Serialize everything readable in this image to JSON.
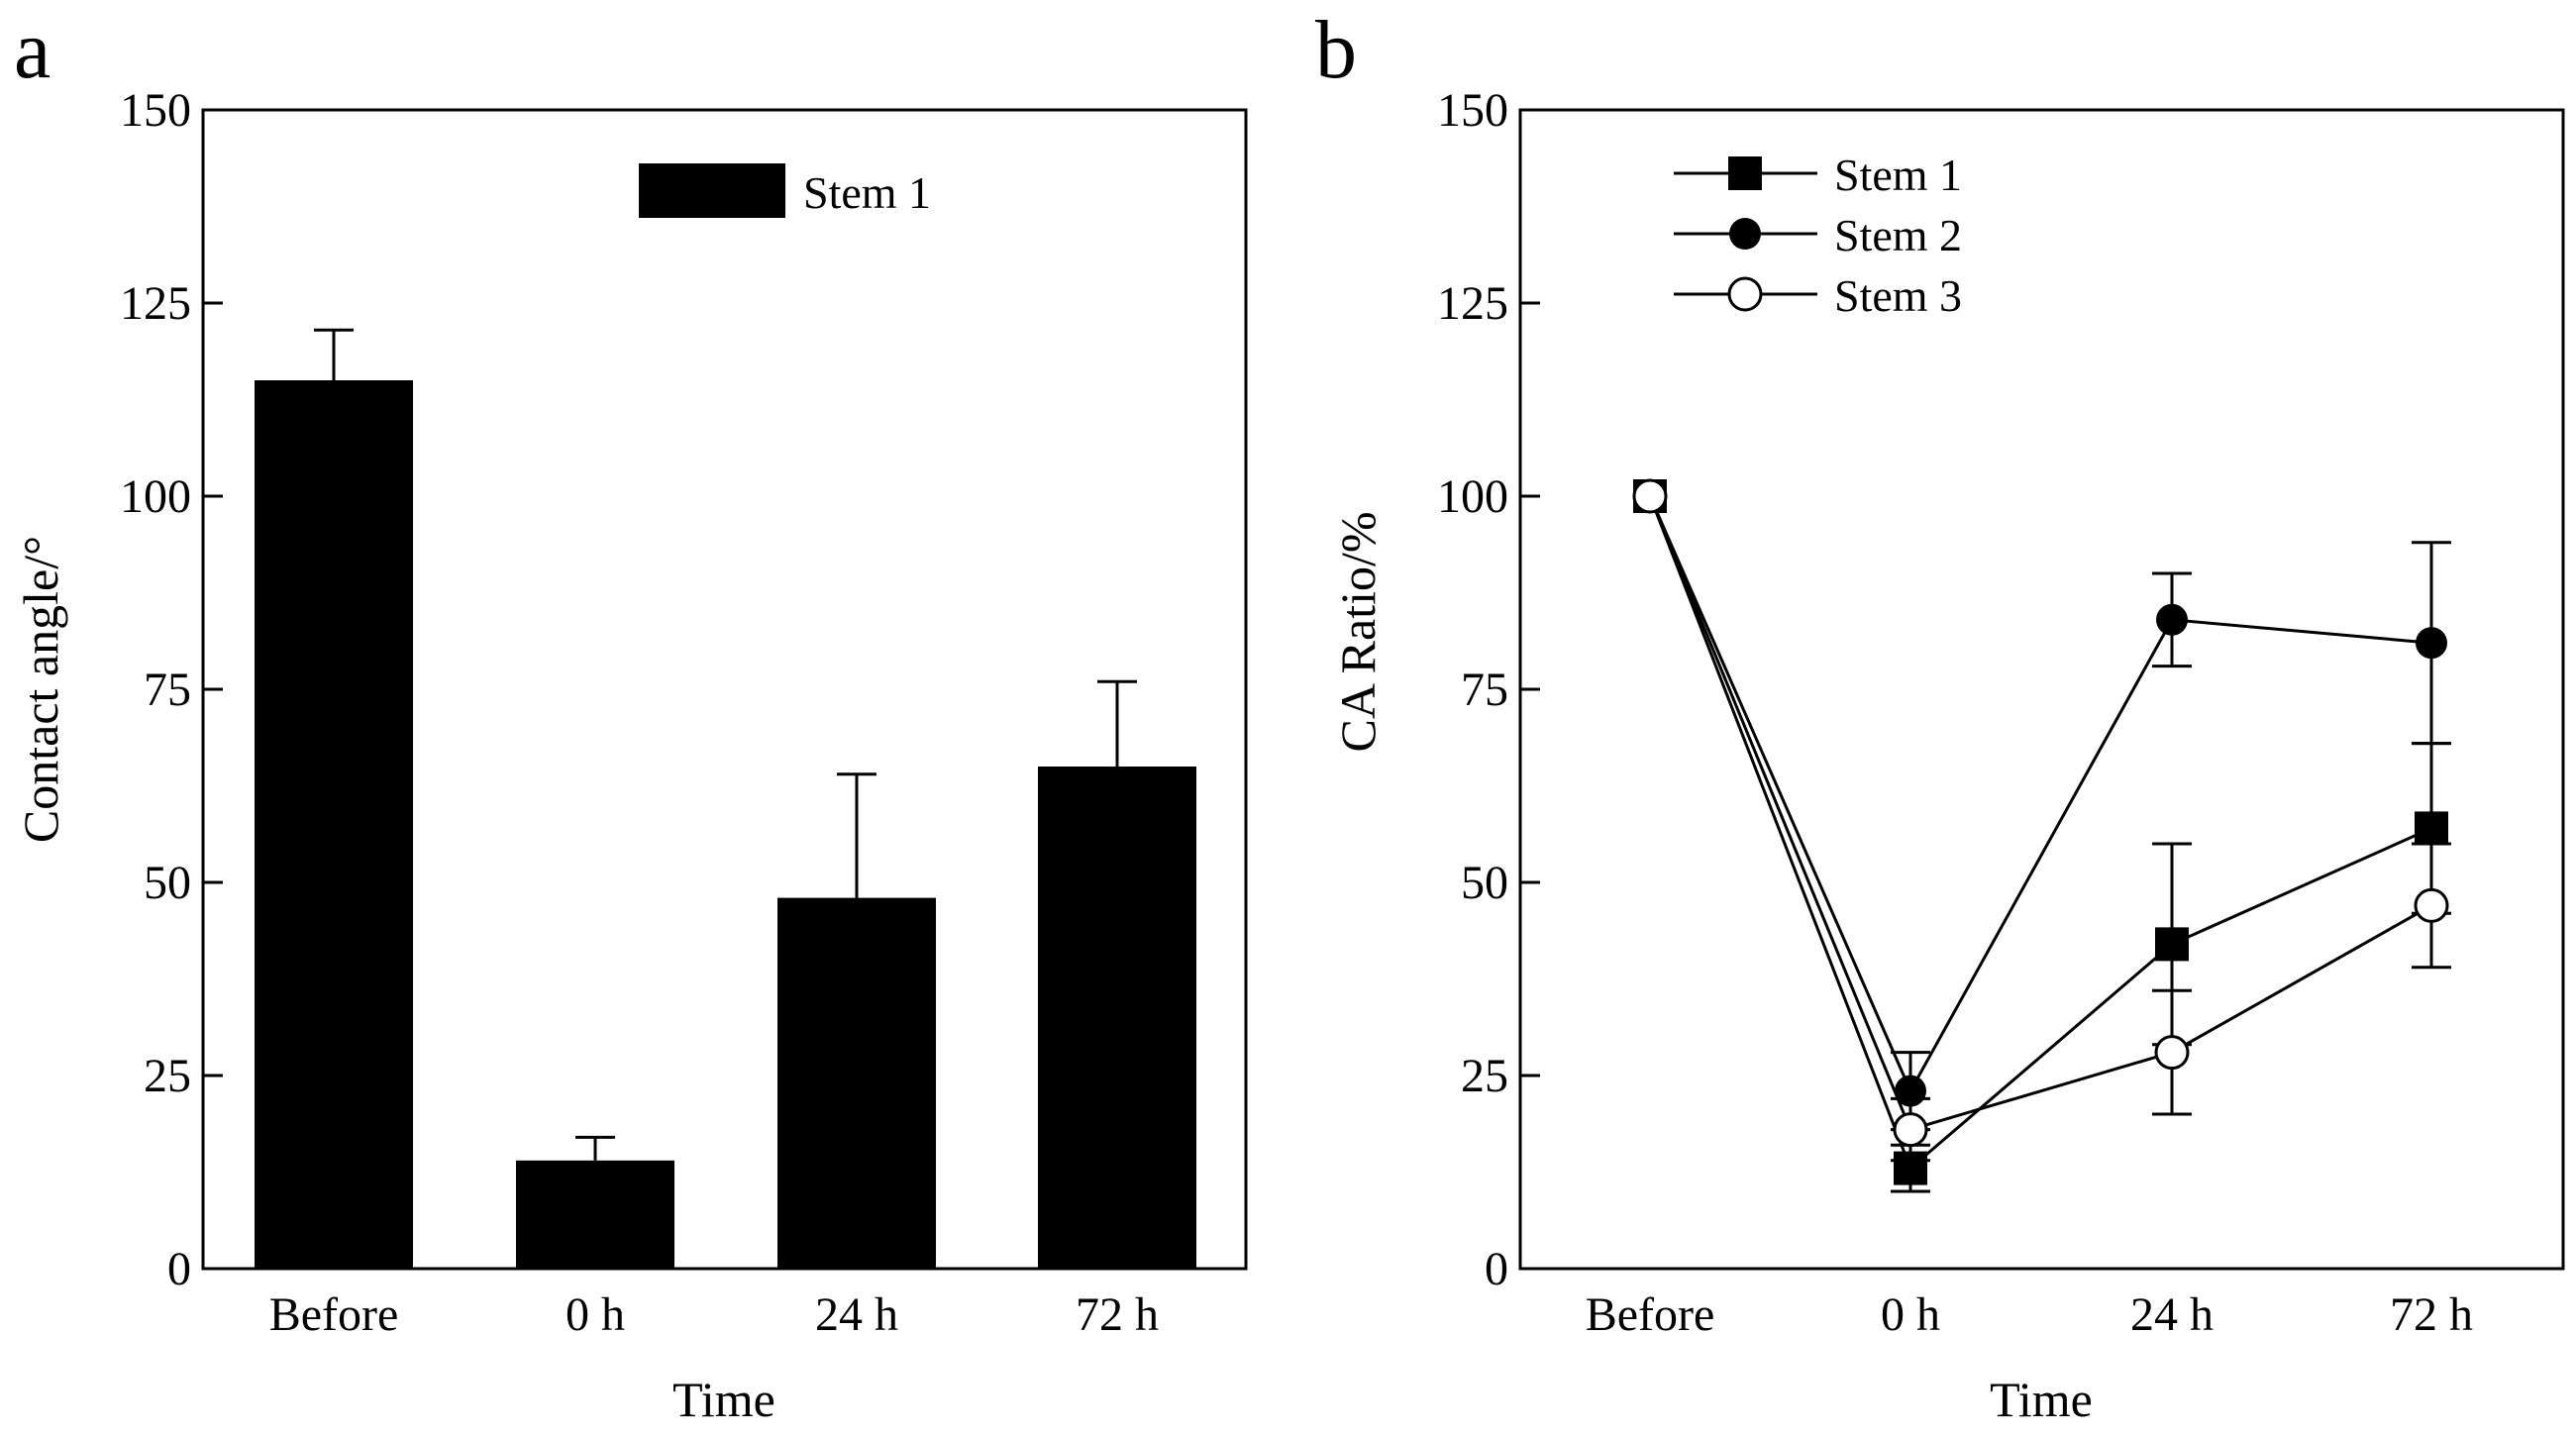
{
  "chart_data": [
    {
      "type": "bar",
      "panel_label": "a",
      "title": "",
      "xlabel": "Time",
      "ylabel": "Contact angle/°",
      "ylim": [
        0,
        150
      ],
      "yticks": [
        0,
        25,
        50,
        75,
        100,
        125,
        150
      ],
      "categories": [
        "Before",
        "0 h",
        "24 h",
        "72 h"
      ],
      "series": [
        {
          "name": "Stem 1",
          "color": "#000000",
          "values": [
            115,
            14,
            48,
            65
          ],
          "errors": [
            6.5,
            3,
            16,
            11
          ]
        }
      ],
      "legend_position": "top-right"
    },
    {
      "type": "line",
      "panel_label": "b",
      "title": "",
      "xlabel": "Time",
      "ylabel": "CA Ratio/%",
      "ylim": [
        0,
        150
      ],
      "yticks": [
        0,
        25,
        50,
        75,
        100,
        125,
        150
      ],
      "categories": [
        "Before",
        "0 h",
        "24 h",
        "72 h"
      ],
      "series": [
        {
          "name": "Stem 1",
          "marker": "square",
          "values": [
            100,
            13,
            42,
            57
          ],
          "errors": [
            0,
            3,
            13,
            11
          ]
        },
        {
          "name": "Stem 2",
          "marker": "circle-filled",
          "values": [
            100,
            23,
            84,
            81
          ],
          "errors": [
            0,
            5,
            6,
            13
          ]
        },
        {
          "name": "Stem 3",
          "marker": "circle-open",
          "values": [
            100,
            18,
            28,
            47
          ],
          "errors": [
            0,
            4,
            8,
            8
          ]
        }
      ],
      "legend_position": "top-left"
    }
  ]
}
